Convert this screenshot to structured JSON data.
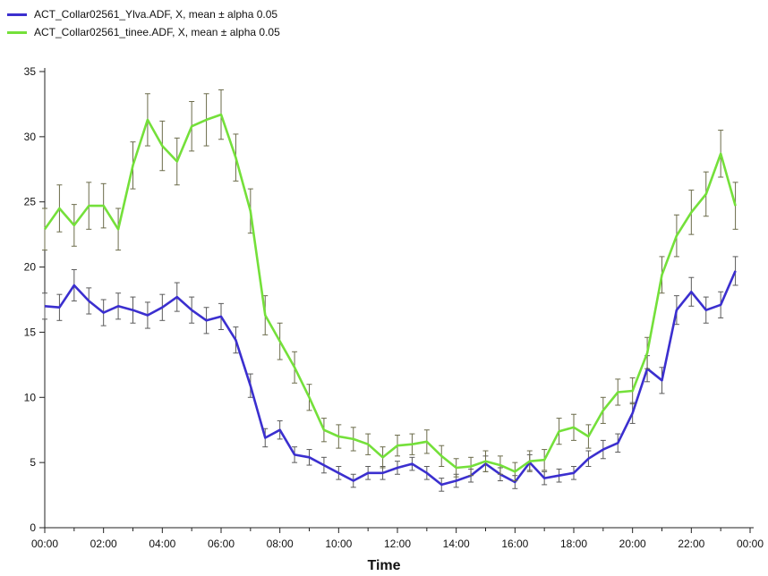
{
  "chart_data": {
    "type": "line",
    "xlabel": "Time",
    "ylabel": "",
    "ylim": [
      0,
      35
    ],
    "yticks": [
      0,
      5,
      10,
      15,
      20,
      25,
      30,
      35
    ],
    "xticks": [
      "00:00",
      "02:00",
      "04:00",
      "06:00",
      "08:00",
      "10:00",
      "12:00",
      "14:00",
      "16:00",
      "18:00",
      "20:00",
      "22:00",
      "00:00"
    ],
    "x_hours": [
      0,
      0.5,
      1,
      1.5,
      2,
      2.5,
      3,
      3.5,
      4,
      4.5,
      5,
      5.5,
      6,
      6.5,
      7,
      7.5,
      8,
      8.5,
      9,
      9.5,
      10,
      10.5,
      11,
      11.5,
      12,
      12.5,
      13,
      13.5,
      14,
      14.5,
      15,
      15.5,
      16,
      16.5,
      17,
      17.5,
      18,
      18.5,
      19,
      19.5,
      20,
      20.5,
      21,
      21.5,
      22,
      22.5,
      23,
      23.5,
      24
    ],
    "legend_position": "top-left",
    "grid": false,
    "series": [
      {
        "name": "ACT_Collar02561_Ylva.ADF, X, mean ± alpha 0.05",
        "color": "#3b2fcf",
        "values": [
          17.0,
          16.9,
          18.6,
          17.4,
          16.5,
          17.0,
          16.7,
          16.3,
          16.9,
          17.7,
          16.7,
          15.9,
          16.2,
          14.4,
          10.9,
          6.9,
          7.5,
          5.6,
          5.4,
          4.8,
          4.2,
          3.6,
          4.2,
          4.2,
          4.6,
          4.9,
          4.2,
          3.3,
          3.6,
          4.0,
          4.9,
          4.1,
          3.5,
          5.0,
          3.8,
          4.0,
          4.2,
          5.3,
          6.0,
          6.5,
          8.8,
          12.2,
          11.3,
          16.7,
          18.1,
          16.7,
          17.1,
          19.7
        ],
        "errors": [
          1.0,
          1.0,
          1.2,
          1.0,
          1.0,
          1.0,
          1.0,
          1.0,
          1.0,
          1.1,
          1.0,
          1.0,
          1.0,
          1.0,
          0.9,
          0.7,
          0.7,
          0.6,
          0.6,
          0.6,
          0.5,
          0.5,
          0.5,
          0.5,
          0.5,
          0.5,
          0.5,
          0.5,
          0.5,
          0.5,
          0.6,
          0.5,
          0.5,
          0.6,
          0.5,
          0.5,
          0.5,
          0.6,
          0.7,
          0.7,
          0.8,
          1.0,
          1.0,
          1.1,
          1.1,
          1.0,
          1.0,
          1.1
        ]
      },
      {
        "name": "ACT_Collar02561_tinee.ADF, X, mean ± alpha 0.05",
        "color": "#74e03a",
        "values": [
          22.9,
          24.5,
          23.2,
          24.7,
          24.7,
          22.9,
          27.8,
          31.3,
          29.3,
          28.1,
          30.8,
          31.3,
          31.7,
          28.4,
          24.3,
          16.3,
          14.3,
          12.3,
          10.0,
          7.5,
          7.0,
          6.8,
          6.4,
          5.4,
          6.3,
          6.4,
          6.6,
          5.5,
          4.6,
          4.7,
          5.1,
          4.8,
          4.3,
          5.1,
          5.2,
          7.4,
          7.7,
          7.0,
          9.0,
          10.4,
          10.5,
          13.4,
          19.4,
          22.4,
          24.2,
          25.6,
          28.7,
          24.7
        ],
        "errors": [
          1.6,
          1.8,
          1.6,
          1.8,
          1.7,
          1.6,
          1.8,
          2.0,
          1.9,
          1.8,
          1.9,
          2.0,
          1.9,
          1.8,
          1.7,
          1.5,
          1.4,
          1.2,
          1.0,
          0.9,
          0.9,
          0.9,
          0.8,
          0.8,
          0.8,
          0.8,
          0.9,
          0.8,
          0.7,
          0.7,
          0.8,
          0.7,
          0.7,
          0.8,
          0.8,
          1.0,
          1.0,
          0.9,
          1.0,
          1.0,
          1.0,
          1.2,
          1.4,
          1.6,
          1.7,
          1.7,
          1.8,
          1.8
        ]
      }
    ]
  }
}
